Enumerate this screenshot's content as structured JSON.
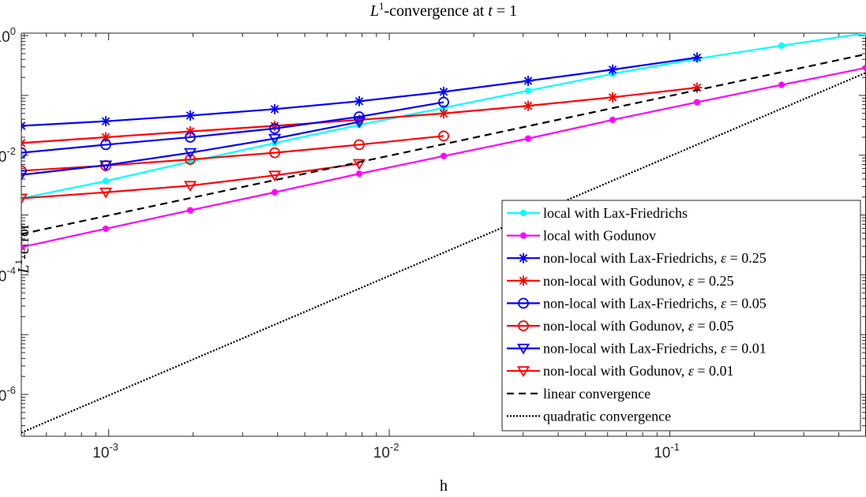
{
  "chart_data": {
    "type": "line",
    "title": "L1-convergence at t = 1",
    "title_parts": {
      "main": "L",
      "sup": "1",
      "rest": "-convergence at ",
      "var": "t",
      "eq": " = 1"
    },
    "xlabel": "h",
    "ylabel": "L1-error",
    "ylabel_parts": {
      "main": "L",
      "sup": "1",
      "rest": "-error"
    },
    "x_scale": "log",
    "y_scale": "log",
    "xlim": [
      0.00048828125,
      0.5
    ],
    "ylim": [
      2e-07,
      1.1
    ],
    "xticks": [
      {
        "value": 0.001,
        "base": "10",
        "exp": "-3"
      },
      {
        "value": 0.01,
        "base": "10",
        "exp": "-2"
      },
      {
        "value": 0.1,
        "base": "10",
        "exp": "-1"
      }
    ],
    "yticks": [
      {
        "value": 1e-06,
        "base": "10",
        "exp": "-6"
      },
      {
        "value": 0.0001,
        "base": "10",
        "exp": "-4"
      },
      {
        "value": 0.01,
        "base": "10",
        "exp": "-2"
      },
      {
        "value": 1,
        "base": "10",
        "exp": "0"
      }
    ],
    "grid": false,
    "legend_position": "bottom-right",
    "series": [
      {
        "name": "local with Lax-Friedrichs",
        "legend": [
          "local with Lax-Friedrichs"
        ],
        "color": "#00ffff",
        "marker": "dot",
        "dash": "solid",
        "x": [
          0.00048828125,
          0.0009765625,
          0.001953125,
          0.00390625,
          0.0078125,
          0.015625,
          0.03125,
          0.0625,
          0.125,
          0.25,
          0.5
        ],
        "y": [
          0.0019,
          0.0037,
          0.0078,
          0.016,
          0.032,
          0.062,
          0.12,
          0.23,
          0.41,
          0.68,
          1.1
        ]
      },
      {
        "name": "local with Godunov",
        "legend": [
          "local with Godunov"
        ],
        "color": "#ff00ff",
        "marker": "dot",
        "dash": "solid",
        "x": [
          0.00048828125,
          0.0009765625,
          0.001953125,
          0.00390625,
          0.0078125,
          0.015625,
          0.03125,
          0.0625,
          0.125,
          0.25,
          0.5
        ],
        "y": [
          0.00029,
          0.00059,
          0.0012,
          0.0024,
          0.0049,
          0.0097,
          0.019,
          0.039,
          0.077,
          0.15,
          0.29
        ]
      },
      {
        "name": "non-local with Lax-Friedrichs, ε = 0.25",
        "legend": [
          "non-local with Lax-Friedrichs, ",
          "ε",
          " = 0.25"
        ],
        "color": "#0000ff",
        "marker": "star",
        "dash": "solid",
        "x": [
          0.00048828125,
          0.0009765625,
          0.001953125,
          0.00390625,
          0.0078125,
          0.015625,
          0.03125,
          0.0625,
          0.125
        ],
        "y": [
          0.031,
          0.037,
          0.046,
          0.059,
          0.08,
          0.115,
          0.175,
          0.27,
          0.43
        ]
      },
      {
        "name": "non-local with Godunov, ε = 0.25",
        "legend": [
          "non-local with Godunov, ",
          "ε",
          " = 0.25"
        ],
        "color": "#ff0000",
        "marker": "star",
        "dash": "solid",
        "x": [
          0.00048828125,
          0.0009765625,
          0.001953125,
          0.00390625,
          0.0078125,
          0.015625,
          0.03125,
          0.0625,
          0.125
        ],
        "y": [
          0.016,
          0.02,
          0.025,
          0.031,
          0.039,
          0.05,
          0.067,
          0.093,
          0.135
        ]
      },
      {
        "name": "non-local with Lax-Friedrichs, ε = 0.05",
        "legend": [
          "non-local with Lax-Friedrichs, ",
          "ε",
          " = 0.05"
        ],
        "color": "#0000ff",
        "marker": "circle",
        "dash": "solid",
        "x": [
          0.00048828125,
          0.0009765625,
          0.001953125,
          0.00390625,
          0.0078125,
          0.015625
        ],
        "y": [
          0.011,
          0.015,
          0.02,
          0.028,
          0.044,
          0.077
        ]
      },
      {
        "name": "non-local with Godunov, ε = 0.05",
        "legend": [
          "non-local with Godunov, ",
          "ε",
          " = 0.05"
        ],
        "color": "#ff0000",
        "marker": "circle",
        "dash": "solid",
        "x": [
          0.00048828125,
          0.0009765625,
          0.001953125,
          0.00390625,
          0.0078125,
          0.015625
        ],
        "y": [
          0.0055,
          0.0067,
          0.0085,
          0.011,
          0.015,
          0.021
        ]
      },
      {
        "name": "non-local with Lax-Friedrichs, ε = 0.01",
        "legend": [
          "non-local with Lax-Friedrichs, ",
          "ε",
          " = 0.01"
        ],
        "color": "#0000ff",
        "marker": "triangle",
        "dash": "solid",
        "x": [
          0.00048828125,
          0.0009765625,
          0.001953125,
          0.00390625,
          0.0078125
        ],
        "y": [
          0.0047,
          0.0068,
          0.011,
          0.019,
          0.036
        ]
      },
      {
        "name": "non-local with Godunov, ε = 0.01",
        "legend": [
          "non-local with Godunov, ",
          "ε",
          " = 0.01"
        ],
        "color": "#ff0000",
        "marker": "triangle",
        "dash": "solid",
        "x": [
          0.00048828125,
          0.0009765625,
          0.001953125,
          0.00390625,
          0.0078125
        ],
        "y": [
          0.0019,
          0.0024,
          0.0031,
          0.0046,
          0.0072
        ]
      },
      {
        "name": "linear convergence",
        "legend": [
          "linear convergence"
        ],
        "color": "#000000",
        "marker": "none",
        "dash": "dashed",
        "x": [
          0.00048828125,
          0.5
        ],
        "y": [
          0.00048,
          0.49
        ]
      },
      {
        "name": "quadratic convergence",
        "legend": [
          "quadratic convergence"
        ],
        "color": "#000000",
        "marker": "none",
        "dash": "dotted",
        "x": [
          0.00048828125,
          0.5
        ],
        "y": [
          2.3e-07,
          0.24
        ]
      }
    ]
  }
}
